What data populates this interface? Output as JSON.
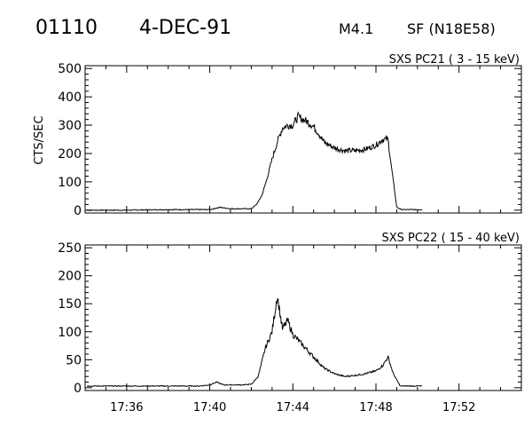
{
  "header": {
    "event_id": "01110",
    "date": "4-DEC-91",
    "flare_class": "M4.1",
    "flare_info": "SF (N18E58)"
  },
  "colors": {
    "ink": "#000000",
    "background": "#ffffff"
  },
  "chart_data": [
    {
      "type": "line",
      "title": "SXS PC21  (  3 - 15 keV)",
      "xlabel": "",
      "ylabel": "CTS/SEC",
      "xlim": [
        "17:34",
        "17:55"
      ],
      "ylim": [
        -10,
        510
      ],
      "x_ticks": [
        "17:36",
        "17:40",
        "17:44",
        "17:48",
        "17:52"
      ],
      "y_ticks": [
        0,
        100,
        200,
        300,
        400,
        500
      ],
      "y_tick_labels": [
        "0",
        "100",
        "200",
        "300",
        "400",
        "500"
      ],
      "x_tick_labels_shown": false,
      "series": [
        {
          "x": [
            "17:34:05",
            "17:36:00",
            "17:38:00",
            "17:39:00",
            "17:40:00",
            "17:40:30",
            "17:41:00",
            "17:41:30",
            "17:42:00",
            "17:42:15",
            "17:42:30",
            "17:42:45",
            "17:43:00",
            "17:43:15",
            "17:43:30",
            "17:43:45",
            "17:44:00",
            "17:44:15",
            "17:44:30",
            "17:44:45",
            "17:45:00",
            "17:45:15",
            "17:45:30",
            "17:46:00",
            "17:46:30",
            "17:47:00",
            "17:47:30",
            "17:48:00",
            "17:48:20",
            "17:48:35",
            "17:48:45",
            "17:49:00",
            "17:49:15",
            "17:49:30",
            "17:50:00",
            "17:50:15"
          ],
          "values": [
            0,
            0,
            2,
            2,
            2,
            10,
            5,
            5,
            5,
            20,
            50,
            110,
            180,
            240,
            290,
            300,
            300,
            330,
            320,
            310,
            295,
            270,
            240,
            220,
            210,
            210,
            215,
            230,
            250,
            250,
            150,
            10,
            2,
            2,
            2,
            2
          ]
        }
      ]
    },
    {
      "type": "line",
      "title": "SXS PC22  ( 15 - 40 keV)",
      "xlabel": "",
      "ylabel": "",
      "xlim": [
        "17:34",
        "17:55"
      ],
      "ylim": [
        -5,
        255
      ],
      "x_ticks": [
        "17:36",
        "17:40",
        "17:44",
        "17:48",
        "17:52"
      ],
      "y_ticks": [
        0,
        50,
        100,
        150,
        200,
        250
      ],
      "y_tick_labels": [
        "0",
        "50",
        "100",
        "150",
        "200",
        "250"
      ],
      "x_tick_labels_shown": true,
      "x_tick_labels": [
        "17:36",
        "17:40",
        "17:44",
        "17:48",
        "17:52"
      ],
      "series": [
        {
          "x": [
            "17:34:05",
            "17:36:00",
            "17:38:00",
            "17:39:30",
            "17:40:00",
            "17:40:20",
            "17:40:40",
            "17:41:00",
            "17:41:30",
            "17:42:00",
            "17:42:20",
            "17:42:40",
            "17:43:00",
            "17:43:15",
            "17:43:30",
            "17:43:45",
            "17:44:00",
            "17:44:15",
            "17:44:30",
            "17:45:00",
            "17:45:30",
            "17:46:00",
            "17:46:30",
            "17:47:00",
            "17:47:30",
            "17:48:00",
            "17:48:20",
            "17:48:35",
            "17:48:50",
            "17:49:10",
            "17:49:30",
            "17:50:00",
            "17:50:15"
          ],
          "values": [
            3,
            3,
            3,
            3,
            5,
            10,
            5,
            5,
            5,
            6,
            20,
            70,
            100,
            165,
            105,
            120,
            95,
            85,
            75,
            55,
            35,
            25,
            20,
            22,
            25,
            30,
            40,
            55,
            25,
            3,
            3,
            3,
            3
          ]
        }
      ]
    }
  ]
}
